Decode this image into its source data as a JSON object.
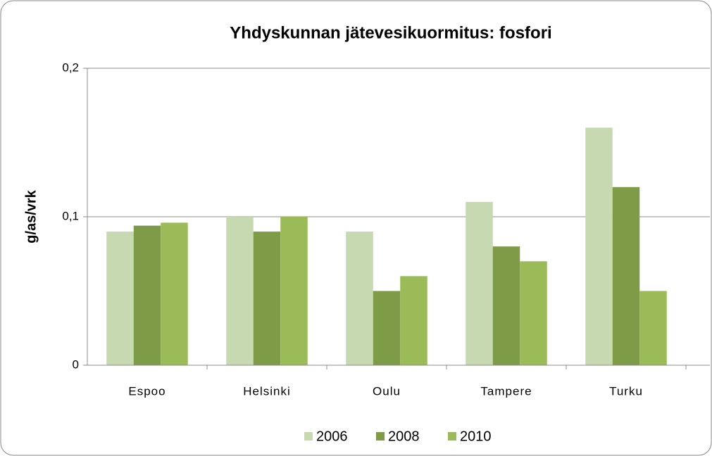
{
  "chart_data": {
    "type": "bar",
    "title": "Yhdyskunnan jätevesikuormitus: fosfori",
    "y_label": "g/as/vrk",
    "categories": [
      "Espoo",
      "Helsinki",
      "Oulu",
      "Tampere",
      "Turku"
    ],
    "series": [
      {
        "name": "2006",
        "color": "#c6d9b0",
        "values": [
          0.09,
          0.1,
          0.09,
          0.11,
          0.16
        ]
      },
      {
        "name": "2008",
        "color": "#7e9b48",
        "values": [
          0.094,
          0.09,
          0.05,
          0.08,
          0.12
        ]
      },
      {
        "name": "2010",
        "color": "#9bbb59",
        "values": [
          0.096,
          0.1,
          0.06,
          0.07,
          0.05
        ]
      }
    ],
    "ylim": [
      0,
      0.2
    ],
    "yticks": [
      0,
      {
        "value": 0.1,
        "label": "0,1"
      },
      {
        "value": 0.2,
        "label": "0,2"
      }
    ],
    "grid": true,
    "legend": "bottom"
  }
}
